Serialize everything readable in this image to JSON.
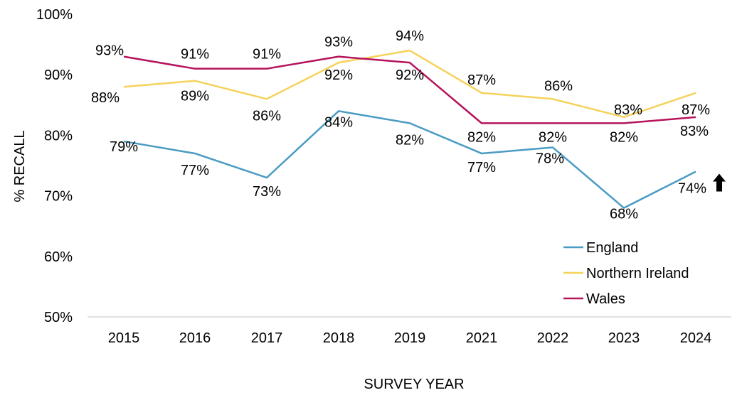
{
  "chart_data": {
    "type": "line",
    "title": "",
    "xlabel": "SURVEY YEAR",
    "ylabel": "% RECALL",
    "categories": [
      "2015",
      "2016",
      "2017",
      "2018",
      "2019",
      "2021",
      "2022",
      "2023",
      "2024"
    ],
    "ylim": [
      50,
      100
    ],
    "yticks": [
      "50%",
      "60%",
      "70%",
      "80%",
      "90%",
      "100%"
    ],
    "grid": false,
    "legend_position": "bottom-right",
    "series": [
      {
        "name": "England",
        "color": "#4A9BC2",
        "values": [
          79,
          77,
          73,
          84,
          82,
          77,
          78,
          68,
          74
        ],
        "labels": [
          "79%",
          "77%",
          "73%",
          "84%",
          "82%",
          "77%",
          "78%",
          "68%",
          "74%"
        ]
      },
      {
        "name": "Northern Ireland",
        "color": "#F5D25B",
        "values": [
          88,
          89,
          86,
          92,
          94,
          87,
          86,
          83,
          87
        ],
        "labels": [
          "88%",
          "89%",
          "86%",
          "92%",
          "94%",
          "87%",
          "86%",
          "83%",
          "87%"
        ]
      },
      {
        "name": "Wales",
        "color": "#B5135A",
        "values": [
          93,
          91,
          91,
          93,
          92,
          82,
          82,
          82,
          83
        ],
        "labels": [
          "93%",
          "91%",
          "91%",
          "93%",
          "92%",
          "82%",
          "82%",
          "82%",
          "83%"
        ]
      }
    ],
    "annotations": [
      {
        "type": "up-arrow",
        "series": "England",
        "category": "2024",
        "icon": "arrow-up-icon"
      }
    ]
  }
}
